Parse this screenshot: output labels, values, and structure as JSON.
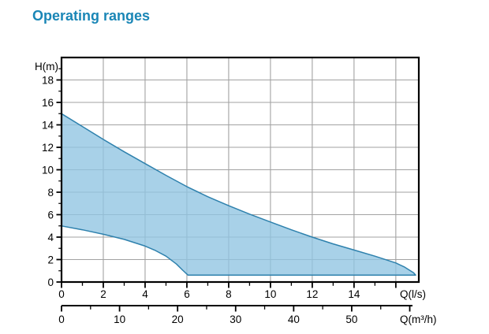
{
  "title": "Operating ranges",
  "colors": {
    "title": "#1a86b6",
    "region_fill": "#8fc4e1",
    "region_stroke": "#2e81ad",
    "grid": "#a2a2a2",
    "axis": "#000000",
    "tick_label": "#000000"
  },
  "chart_data": {
    "type": "area",
    "title": "Operating ranges",
    "grid": true,
    "y_axis": {
      "label": "H(m)",
      "min": 0,
      "max": 20,
      "labeled_ticks": [
        0,
        2,
        4,
        6,
        8,
        10,
        12,
        14,
        16,
        18
      ],
      "minor_ticks": [
        1,
        3,
        5,
        7,
        9,
        11,
        13,
        15,
        17,
        19
      ],
      "gridlines": [
        2,
        4,
        6,
        8,
        10,
        12,
        14,
        16,
        18
      ]
    },
    "x_axis_primary": {
      "label": "Q(l/s)",
      "unit": "l/s",
      "min": 0,
      "max": 17.1,
      "labeled_ticks": [
        0,
        2,
        4,
        6,
        8,
        10,
        12,
        14
      ],
      "unlabeled_major_ticks": [
        16
      ],
      "minor_ticks": [
        1,
        3,
        5,
        7,
        9,
        11,
        13,
        15
      ],
      "gridlines": [
        2,
        4,
        6,
        8,
        10,
        12,
        14,
        16
      ]
    },
    "x_axis_secondary": {
      "label": "Q(m³/h)",
      "unit": "m³/h",
      "min": 0,
      "max": 60.5,
      "unit_conversion_to_primary": 3.6,
      "labeled_ticks": [
        0,
        10,
        20,
        30,
        40,
        50
      ],
      "unlabeled_major_ticks": [
        60
      ],
      "minor_ticks": [
        5,
        15,
        25,
        35,
        45,
        55
      ]
    },
    "series": [
      {
        "name": "upper_limit",
        "points": [
          [
            0,
            15.0
          ],
          [
            1,
            13.85
          ],
          [
            2,
            12.7
          ],
          [
            3,
            11.6
          ],
          [
            4,
            10.55
          ],
          [
            5,
            9.5
          ],
          [
            6,
            8.5
          ],
          [
            7,
            7.6
          ],
          [
            8,
            6.8
          ],
          [
            9,
            6.05
          ],
          [
            10,
            5.35
          ],
          [
            11,
            4.65
          ],
          [
            12,
            4.0
          ],
          [
            13,
            3.4
          ],
          [
            14,
            2.85
          ],
          [
            15,
            2.3
          ],
          [
            16,
            1.7
          ],
          [
            16.4,
            1.35
          ],
          [
            16.7,
            1.0
          ],
          [
            16.85,
            0.82
          ],
          [
            16.95,
            0.62
          ]
        ]
      },
      {
        "name": "lower_limit",
        "points": [
          [
            0,
            5.0
          ],
          [
            1,
            4.65
          ],
          [
            2,
            4.25
          ],
          [
            3,
            3.8
          ],
          [
            4,
            3.2
          ],
          [
            4.5,
            2.8
          ],
          [
            5,
            2.3
          ],
          [
            5.5,
            1.6
          ],
          [
            5.8,
            1.05
          ],
          [
            6.05,
            0.62
          ],
          [
            16.95,
            0.62
          ]
        ]
      }
    ]
  }
}
